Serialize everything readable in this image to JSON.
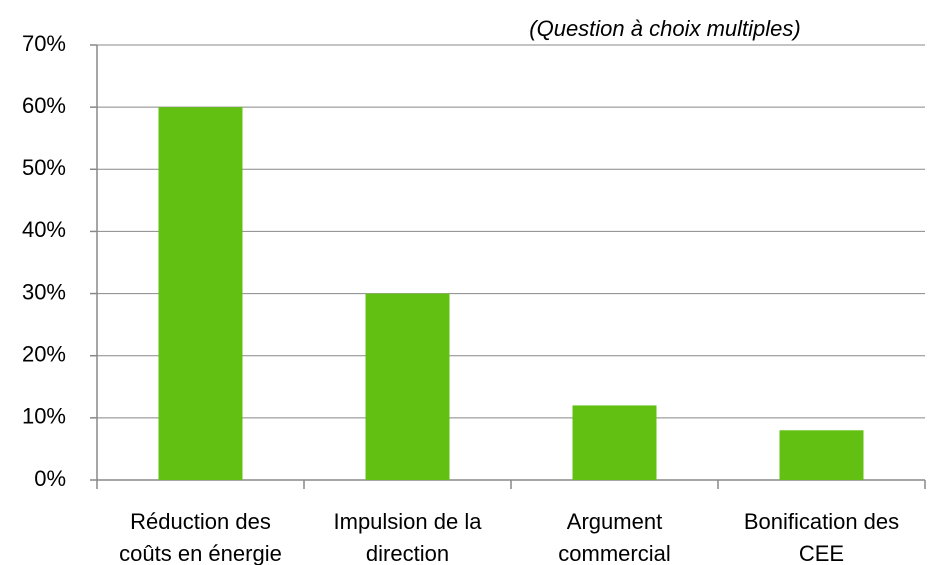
{
  "chart_data": {
    "type": "bar",
    "subtitle": "(Question à choix multiples)",
    "categories": [
      "Réduction des\ncoûts en énergie",
      "Impulsion de la\ndirection",
      "Argument\ncommercial",
      "Bonification des\nCEE"
    ],
    "values": [
      60,
      30,
      12,
      8
    ],
    "color": "#62c012",
    "ylim": [
      0,
      70
    ],
    "yticks": [
      {
        "value": 0,
        "label": "0%"
      },
      {
        "value": 10,
        "label": "10%"
      },
      {
        "value": 20,
        "label": "20%"
      },
      {
        "value": 30,
        "label": "30%"
      },
      {
        "value": 40,
        "label": "40%"
      },
      {
        "value": 50,
        "label": "50%"
      },
      {
        "value": 60,
        "label": "60%"
      },
      {
        "value": 70,
        "label": "70%"
      }
    ],
    "grid": true
  }
}
